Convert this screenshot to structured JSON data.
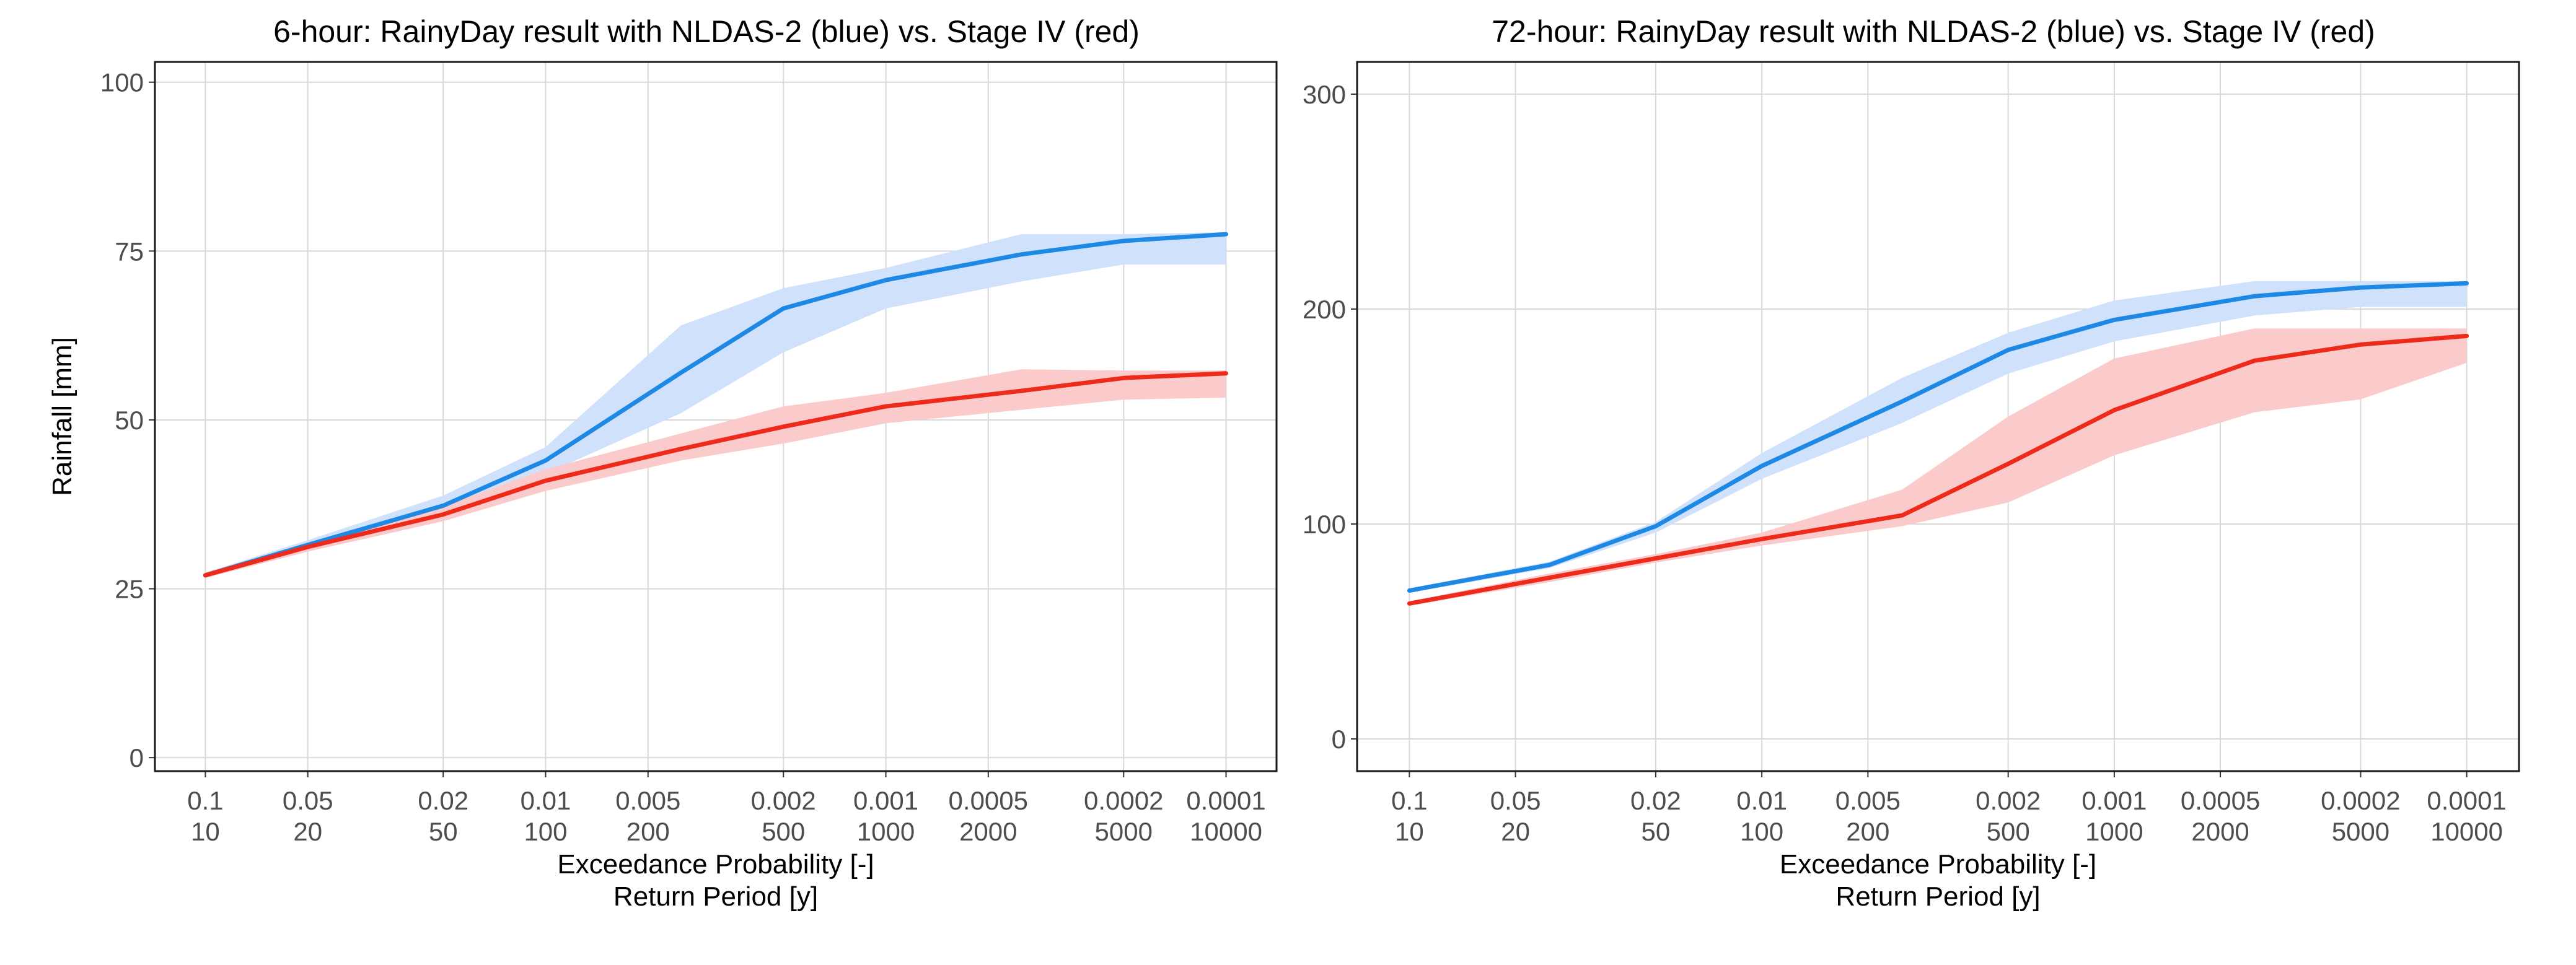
{
  "chart_data": [
    {
      "type": "line",
      "title": "6-hour: RainyDay result with NLDAS-2 (blue) vs. Stage IV (red)",
      "xlabel": "Exceedance Probability [-]",
      "xlabel2": "Return Period [y]",
      "ylabel": "Rainfall [mm]",
      "x_scale": "log (exceedance probability, reversed)",
      "x_ticks": [
        {
          "p": 0.1,
          "top": "0.1",
          "bottom": "10"
        },
        {
          "p": 0.05,
          "top": "0.05",
          "bottom": "20"
        },
        {
          "p": 0.02,
          "top": "0.02",
          "bottom": "50"
        },
        {
          "p": 0.01,
          "top": "0.01",
          "bottom": "100"
        },
        {
          "p": 0.005,
          "top": "0.005",
          "bottom": "200"
        },
        {
          "p": 0.002,
          "top": "0.002",
          "bottom": "500"
        },
        {
          "p": 0.001,
          "top": "0.001",
          "bottom": "1000"
        },
        {
          "p": 0.0005,
          "top": "0.0005",
          "bottom": "2000"
        },
        {
          "p": 0.0002,
          "top": "0.0002",
          "bottom": "5000"
        },
        {
          "p": 0.0001,
          "top": "0.0001",
          "bottom": "10000"
        }
      ],
      "y_ticks": [
        0,
        25,
        50,
        75,
        100
      ],
      "ylim": [
        -2,
        103
      ],
      "grid": true,
      "series": [
        {
          "color": "#1e88e5",
          "band_color": "#cfe1fb",
          "points": [
            {
              "p": 0.1,
              "y": 27,
              "lo": 26.6,
              "hi": 27.4
            },
            {
              "p": 0.05,
              "y": 31.5,
              "lo": 30.8,
              "hi": 32.2
            },
            {
              "p": 0.02,
              "y": 37.3,
              "lo": 36.0,
              "hi": 38.8
            },
            {
              "p": 0.01,
              "y": 44,
              "lo": 42,
              "hi": 46
            },
            {
              "p": 0.004,
              "y": 57,
              "lo": 51,
              "hi": 64
            },
            {
              "p": 0.002,
              "y": 66.5,
              "lo": 60,
              "hi": 69.5
            },
            {
              "p": 0.001,
              "y": 70.7,
              "lo": 66.5,
              "hi": 72.5
            },
            {
              "p": 0.0004,
              "y": 74.5,
              "lo": 70.5,
              "hi": 77.5
            },
            {
              "p": 0.0002,
              "y": 76.5,
              "lo": 73,
              "hi": 77.5
            },
            {
              "p": 0.0001,
              "y": 77.5,
              "lo": 73,
              "hi": 77.8
            }
          ]
        },
        {
          "color": "#ee2a1b",
          "band_color": "#fbcaca",
          "points": [
            {
              "p": 0.1,
              "y": 27,
              "lo": 26.6,
              "hi": 27.4
            },
            {
              "p": 0.05,
              "y": 31.2,
              "lo": 30.5,
              "hi": 31.8
            },
            {
              "p": 0.02,
              "y": 36,
              "lo": 35,
              "hi": 37.2
            },
            {
              "p": 0.01,
              "y": 41,
              "lo": 39.5,
              "hi": 42.7
            },
            {
              "p": 0.004,
              "y": 45.7,
              "lo": 44,
              "hi": 48
            },
            {
              "p": 0.002,
              "y": 49,
              "lo": 46.5,
              "hi": 52
            },
            {
              "p": 0.001,
              "y": 52,
              "lo": 49.5,
              "hi": 54
            },
            {
              "p": 0.0004,
              "y": 54.3,
              "lo": 51.5,
              "hi": 57.5
            },
            {
              "p": 0.0002,
              "y": 56.2,
              "lo": 53,
              "hi": 57.3
            },
            {
              "p": 0.0001,
              "y": 56.9,
              "lo": 53.3,
              "hi": 57.3
            }
          ]
        }
      ]
    },
    {
      "type": "line",
      "title": "72-hour: RainyDay result with NLDAS-2 (blue) vs. Stage IV (red)",
      "xlabel": "Exceedance Probability [-]",
      "xlabel2": "Return Period [y]",
      "ylabel": "",
      "x_scale": "log (exceedance probability, reversed)",
      "x_ticks": [
        {
          "p": 0.1,
          "top": "0.1",
          "bottom": "10"
        },
        {
          "p": 0.05,
          "top": "0.05",
          "bottom": "20"
        },
        {
          "p": 0.02,
          "top": "0.02",
          "bottom": "50"
        },
        {
          "p": 0.01,
          "top": "0.01",
          "bottom": "100"
        },
        {
          "p": 0.005,
          "top": "0.005",
          "bottom": "200"
        },
        {
          "p": 0.002,
          "top": "0.002",
          "bottom": "500"
        },
        {
          "p": 0.001,
          "top": "0.001",
          "bottom": "1000"
        },
        {
          "p": 0.0005,
          "top": "0.0005",
          "bottom": "2000"
        },
        {
          "p": 0.0002,
          "top": "0.0002",
          "bottom": "5000"
        },
        {
          "p": 0.0001,
          "top": "0.0001",
          "bottom": "10000"
        }
      ],
      "y_ticks": [
        0,
        100,
        200,
        300
      ],
      "ylim": [
        -15,
        315
      ],
      "grid": true,
      "series": [
        {
          "color": "#1e88e5",
          "band_color": "#cfe1fb",
          "points": [
            {
              "p": 0.1,
              "y": 69,
              "lo": 68,
              "hi": 70
            },
            {
              "p": 0.04,
              "y": 81,
              "lo": 79.5,
              "hi": 82.5
            },
            {
              "p": 0.02,
              "y": 99,
              "lo": 96,
              "hi": 101
            },
            {
              "p": 0.01,
              "y": 127,
              "lo": 121,
              "hi": 133
            },
            {
              "p": 0.004,
              "y": 157,
              "lo": 147,
              "hi": 168
            },
            {
              "p": 0.002,
              "y": 181,
              "lo": 170,
              "hi": 189
            },
            {
              "p": 0.001,
              "y": 195,
              "lo": 185,
              "hi": 204
            },
            {
              "p": 0.0004,
              "y": 206,
              "lo": 197,
              "hi": 213
            },
            {
              "p": 0.0002,
              "y": 210,
              "lo": 201,
              "hi": 213
            },
            {
              "p": 0.0001,
              "y": 212,
              "lo": 201,
              "hi": 213
            }
          ]
        },
        {
          "color": "#ee2a1b",
          "band_color": "#fbcaca",
          "points": [
            {
              "p": 0.1,
              "y": 63,
              "lo": 62,
              "hi": 64
            },
            {
              "p": 0.04,
              "y": 75,
              "lo": 73,
              "hi": 77
            },
            {
              "p": 0.02,
              "y": 84,
              "lo": 82,
              "hi": 86
            },
            {
              "p": 0.01,
              "y": 93,
              "lo": 90,
              "hi": 96
            },
            {
              "p": 0.004,
              "y": 104,
              "lo": 99,
              "hi": 116
            },
            {
              "p": 0.002,
              "y": 128,
              "lo": 110,
              "hi": 150
            },
            {
              "p": 0.001,
              "y": 153,
              "lo": 132,
              "hi": 177
            },
            {
              "p": 0.0004,
              "y": 176,
              "lo": 152,
              "hi": 191
            },
            {
              "p": 0.0002,
              "y": 183.5,
              "lo": 158,
              "hi": 191
            },
            {
              "p": 0.0001,
              "y": 187.5,
              "lo": 175,
              "hi": 191
            }
          ]
        }
      ]
    }
  ]
}
